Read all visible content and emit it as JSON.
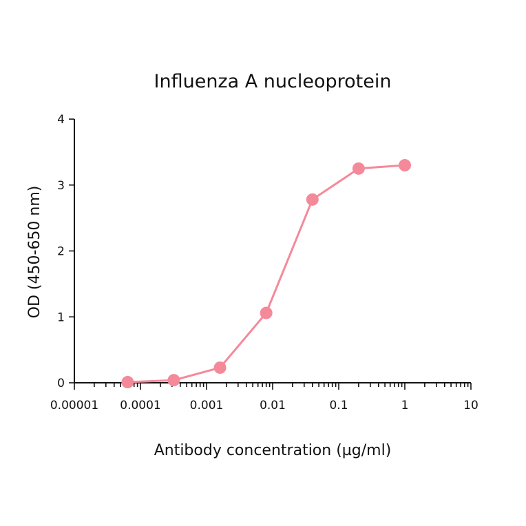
{
  "chart_data": {
    "type": "line",
    "title": "Influenza A nucleoprotein",
    "xlabel": "Antibody concentration (µg/ml)",
    "ylabel": "OD (450-650 nm)",
    "x_scale": "log",
    "xlim": [
      1e-05,
      10
    ],
    "ylim": [
      0,
      4
    ],
    "x_ticks": [
      1e-05,
      0.0001,
      0.001,
      0.01,
      0.1,
      1,
      10
    ],
    "x_tick_labels": [
      "0.00001",
      "0.0001",
      "0.001",
      "0.01",
      "0.1",
      "1",
      "10"
    ],
    "y_ticks": [
      0,
      1,
      2,
      3,
      4
    ],
    "y_tick_labels": [
      "0",
      "1",
      "2",
      "3",
      "4"
    ],
    "grid": false,
    "legend": "none",
    "color": "#f4899a",
    "series": [
      {
        "x": [
          6.4e-05,
          0.00032,
          0.0016,
          0.008,
          0.04,
          0.2,
          1
        ],
        "y": [
          0.01,
          0.04,
          0.23,
          1.06,
          2.78,
          3.25,
          3.3
        ]
      }
    ]
  }
}
